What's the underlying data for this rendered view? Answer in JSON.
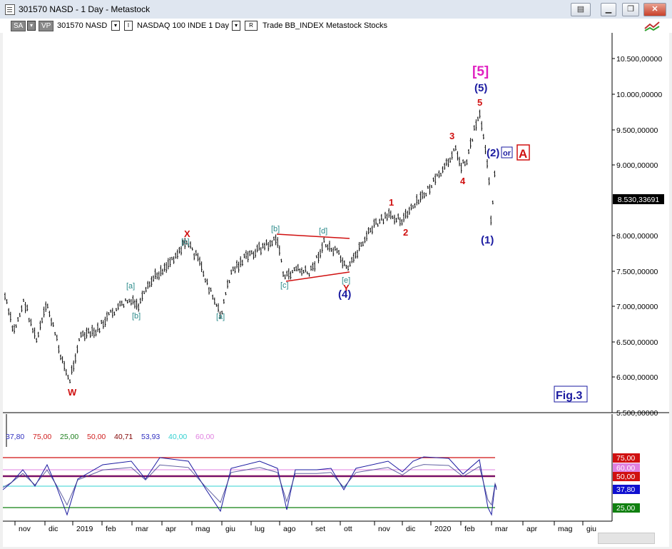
{
  "window": {
    "title": "301570 NASD - 1 Day - Metastock",
    "controls": [
      "restore-doc-icon",
      "minimize-icon",
      "restore-icon",
      "close-icon"
    ]
  },
  "toolbar": {
    "sa_label": "SA",
    "vp_label": "VP",
    "symbol": "301570 NASD",
    "instrument": "NASDAQ 100 INDE  1 Day",
    "r_label": "R",
    "rest": "Trade  BB_INDEX  Metastock  Stocks"
  },
  "price_axis": {
    "ticks": [
      "10.500,00000",
      "10.000,00000",
      "9.500,00000",
      "9.000,00000",
      "8.000,00000",
      "7.500,00000",
      "7.000,00000",
      "6.500,00000",
      "6.000,00000",
      "5.500,00000"
    ],
    "current_price": "8.530,33691"
  },
  "time_axis": {
    "labels": [
      "nov",
      "dic",
      "2019",
      "feb",
      "mar",
      "apr",
      "mag",
      "giu",
      "lug",
      "ago",
      "set",
      "ott",
      "nov",
      "dic",
      "2020",
      "feb",
      "mar",
      "apr",
      "mag",
      "giu"
    ]
  },
  "wave_labels": {
    "W": "W",
    "X": "X",
    "Y": "Y",
    "a1": "[a]",
    "b1": "[b]",
    "c1": "[c]",
    "a2": "[a]",
    "b2": "[b]",
    "c2": "[c]",
    "d": "[d]",
    "e": "[e]",
    "w4": "(4)",
    "w1": "1",
    "w2": "2",
    "w3": "3",
    "w4r": "4",
    "w5r": "5",
    "w5b": "(5)",
    "w5m": "[5]",
    "p1": "(1)",
    "p2": "(2)",
    "or": "or",
    "A": "A",
    "fig": "Fig.3"
  },
  "indicator": {
    "legend": [
      {
        "text": "37,80",
        "color": "#3030c0"
      },
      {
        "text": "75,00",
        "color": "#d02020"
      },
      {
        "text": "25,00",
        "color": "#208020"
      },
      {
        "text": "50,00",
        "color": "#d02020"
      },
      {
        "text": "40,71",
        "color": "#800000"
      },
      {
        "text": "53,93",
        "color": "#3030c0"
      },
      {
        "text": "40,00",
        "color": "#30d0d0"
      },
      {
        "text": "60,00",
        "color": "#e080e0"
      }
    ],
    "axis_tags": [
      {
        "text": "75,00",
        "color": "#d01010"
      },
      {
        "text": "60,00",
        "color": "#e080e0"
      },
      {
        "text": "50,00",
        "color": "#d01010"
      },
      {
        "text": "37,80",
        "color": "#1010d0"
      },
      {
        "text": "25,00",
        "color": "#108010"
      }
    ]
  },
  "colors": {
    "red": "#d01010",
    "blue": "#1a1aa0",
    "teal": "#2a8a8a",
    "magenta": "#e020c0"
  }
}
